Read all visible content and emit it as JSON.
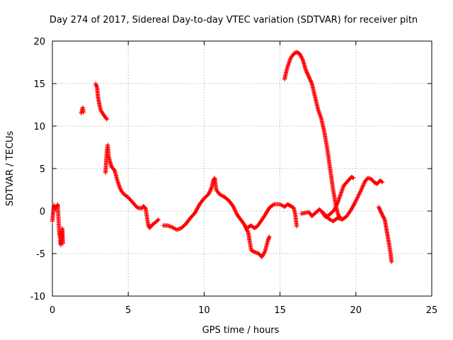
{
  "chart_data": {
    "type": "scatter",
    "title": "Day 274 of 2017, Sidereal Day-to-day VTEC variation (SDTVAR) for receiver pitn",
    "xlabel": "GPS time / hours",
    "ylabel": "SDTVAR / TECUs",
    "xlim": [
      0,
      25
    ],
    "ylim": [
      -10,
      20
    ],
    "x_ticks": [
      0,
      5,
      10,
      15,
      20,
      25
    ],
    "y_ticks": [
      -10,
      -5,
      0,
      5,
      10,
      15,
      20
    ],
    "grid": true,
    "marker": "+",
    "series": [
      {
        "name": "SDTVAR",
        "color": "#ff0000",
        "segments": [
          [
            [
              0.0,
              -1.2
            ],
            [
              0.1,
              0.7
            ],
            [
              0.2,
              0.3
            ],
            [
              0.3,
              0.5
            ],
            [
              0.35,
              0.8
            ],
            [
              0.4,
              -0.8
            ],
            [
              0.45,
              -2.5
            ],
            [
              0.5,
              -3.0
            ],
            [
              0.55,
              -4.0
            ],
            [
              0.6,
              -3.5
            ],
            [
              0.65,
              -2.0
            ],
            [
              0.7,
              -3.8
            ]
          ],
          [
            [
              1.9,
              11.5
            ],
            [
              2.0,
              12.2
            ],
            [
              2.05,
              11.6
            ]
          ],
          [
            [
              2.85,
              15.0
            ],
            [
              2.95,
              14.5
            ],
            [
              3.0,
              13.5
            ],
            [
              3.1,
              12.5
            ],
            [
              3.2,
              11.8
            ],
            [
              3.35,
              11.4
            ],
            [
              3.5,
              11.0
            ],
            [
              3.6,
              10.8
            ]
          ],
          [
            [
              3.5,
              4.5
            ],
            [
              3.55,
              6.0
            ],
            [
              3.6,
              7.2
            ],
            [
              3.65,
              7.8
            ],
            [
              3.7,
              6.5
            ],
            [
              3.8,
              5.8
            ],
            [
              3.9,
              5.2
            ],
            [
              4.1,
              4.8
            ],
            [
              4.3,
              3.5
            ],
            [
              4.5,
              2.5
            ],
            [
              4.7,
              2.0
            ],
            [
              5.0,
              1.6
            ],
            [
              5.3,
              1.0
            ],
            [
              5.6,
              0.4
            ],
            [
              5.9,
              0.3
            ],
            [
              6.0,
              0.6
            ],
            [
              6.15,
              0.3
            ],
            [
              6.3,
              -1.5
            ],
            [
              6.4,
              -2.0
            ],
            [
              6.6,
              -1.6
            ],
            [
              6.8,
              -1.3
            ],
            [
              7.0,
              -1.0
            ]
          ],
          [
            [
              7.3,
              -1.7
            ],
            [
              7.6,
              -1.7
            ],
            [
              7.9,
              -1.9
            ],
            [
              8.2,
              -2.2
            ],
            [
              8.5,
              -2.0
            ],
            [
              8.8,
              -1.5
            ],
            [
              9.1,
              -0.8
            ],
            [
              9.4,
              -0.2
            ],
            [
              9.7,
              0.8
            ],
            [
              10.0,
              1.5
            ],
            [
              10.3,
              2.0
            ],
            [
              10.5,
              2.8
            ],
            [
              10.6,
              3.6
            ],
            [
              10.7,
              3.9
            ],
            [
              10.8,
              2.5
            ],
            [
              11.0,
              2.0
            ],
            [
              11.3,
              1.7
            ],
            [
              11.6,
              1.3
            ],
            [
              11.9,
              0.6
            ],
            [
              12.2,
              -0.5
            ],
            [
              12.5,
              -1.2
            ],
            [
              12.8,
              -2.0
            ]
          ],
          [
            [
              12.9,
              -1.9
            ],
            [
              13.1,
              -1.7
            ],
            [
              13.3,
              -2.0
            ],
            [
              13.5,
              -1.8
            ],
            [
              13.7,
              -1.3
            ],
            [
              14.0,
              -0.5
            ],
            [
              14.3,
              0.4
            ],
            [
              14.6,
              0.8
            ],
            [
              15.0,
              0.8
            ],
            [
              15.3,
              0.5
            ],
            [
              15.5,
              0.8
            ],
            [
              15.7,
              0.6
            ],
            [
              15.9,
              0.4
            ],
            [
              16.0,
              -0.3
            ],
            [
              16.1,
              -1.8
            ]
          ],
          [
            [
              12.7,
              -1.8
            ],
            [
              12.9,
              -2.5
            ],
            [
              13.0,
              -3.5
            ],
            [
              13.1,
              -4.6
            ],
            [
              13.3,
              -4.8
            ],
            [
              13.6,
              -5.0
            ],
            [
              13.8,
              -5.4
            ],
            [
              14.0,
              -4.8
            ],
            [
              14.2,
              -3.5
            ],
            [
              14.3,
              -3.0
            ]
          ],
          [
            [
              15.3,
              15.5
            ],
            [
              15.4,
              16.3
            ],
            [
              15.5,
              17.0
            ],
            [
              15.7,
              18.0
            ],
            [
              15.9,
              18.5
            ],
            [
              16.1,
              18.7
            ],
            [
              16.3,
              18.5
            ],
            [
              16.5,
              17.8
            ],
            [
              16.7,
              16.6
            ],
            [
              16.9,
              15.8
            ],
            [
              17.1,
              15.0
            ],
            [
              17.3,
              13.5
            ],
            [
              17.5,
              12.0
            ],
            [
              17.7,
              11.0
            ],
            [
              17.9,
              9.5
            ],
            [
              18.1,
              7.5
            ],
            [
              18.3,
              5.0
            ],
            [
              18.5,
              2.5
            ],
            [
              18.7,
              0.5
            ],
            [
              18.85,
              -0.5
            ],
            [
              19.0,
              -0.8
            ]
          ],
          [
            [
              17.8,
              -0.2
            ],
            [
              18.0,
              -0.7
            ],
            [
              18.2,
              -0.5
            ],
            [
              18.4,
              -0.2
            ],
            [
              18.6,
              0.2
            ],
            [
              18.8,
              1.0
            ],
            [
              19.0,
              2.0
            ],
            [
              19.2,
              3.0
            ],
            [
              19.5,
              3.6
            ],
            [
              19.7,
              4.0
            ],
            [
              19.85,
              3.9
            ]
          ],
          [
            [
              16.4,
              -0.3
            ],
            [
              16.7,
              -0.2
            ],
            [
              16.9,
              -0.1
            ],
            [
              17.1,
              -0.6
            ],
            [
              17.4,
              -0.1
            ],
            [
              17.6,
              0.2
            ],
            [
              17.9,
              -0.3
            ],
            [
              18.2,
              -0.9
            ],
            [
              18.5,
              -1.2
            ],
            [
              18.8,
              -0.8
            ],
            [
              19.1,
              -1.0
            ],
            [
              19.4,
              -0.6
            ],
            [
              19.7,
              0.2
            ],
            [
              20.0,
              1.2
            ],
            [
              20.3,
              2.3
            ],
            [
              20.6,
              3.5
            ],
            [
              20.8,
              3.9
            ],
            [
              21.0,
              3.8
            ],
            [
              21.2,
              3.4
            ],
            [
              21.4,
              3.2
            ],
            [
              21.6,
              3.6
            ],
            [
              21.75,
              3.4
            ]
          ],
          [
            [
              21.5,
              0.5
            ],
            [
              21.7,
              -0.3
            ],
            [
              21.9,
              -1.0
            ],
            [
              22.0,
              -2.0
            ],
            [
              22.1,
              -3.0
            ],
            [
              22.2,
              -4.0
            ],
            [
              22.3,
              -5.2
            ],
            [
              22.35,
              -6.0
            ]
          ]
        ]
      }
    ]
  }
}
